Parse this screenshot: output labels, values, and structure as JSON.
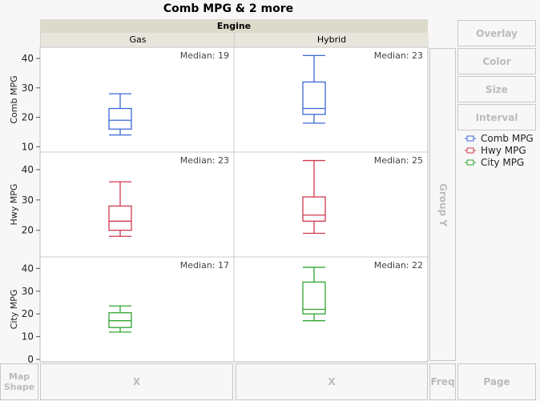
{
  "title": "Comb MPG & 2 more",
  "group_x_header": "Engine",
  "columns": [
    "Gas",
    "Hybrid"
  ],
  "buttons": {
    "overlay": "Overlay",
    "color": "Color",
    "size": "Size",
    "interval": "Interval",
    "group_y": "Group Y",
    "map_shape": "Map Shape",
    "x1": "X",
    "x2": "X",
    "freq": "Freq",
    "page": "Page"
  },
  "legend": [
    {
      "label": "Comb MPG",
      "color": "#3b66d4"
    },
    {
      "label": "Hwy MPG",
      "color": "#cf3a4e"
    },
    {
      "label": "City MPG",
      "color": "#2fa52f"
    }
  ],
  "chart_data": {
    "type": "box",
    "rows": [
      {
        "ylabel": "Comb MPG",
        "color": "#3b66d4",
        "ylim": [
          9,
          43
        ],
        "ticks": [
          10,
          20,
          30,
          40
        ],
        "boxes": [
          {
            "group": "Gas",
            "min": 14,
            "q1": 16,
            "median": 19,
            "q3": 23,
            "max": 28,
            "label": "Median: 19"
          },
          {
            "group": "Hybrid",
            "min": 18,
            "q1": 21,
            "median": 23,
            "q3": 32,
            "max": 41,
            "label": "Median: 23"
          }
        ]
      },
      {
        "ylabel": "Hwy MPG",
        "color": "#cf3a4e",
        "ylim": [
          12,
          45
        ],
        "ticks": [
          20,
          30,
          40
        ],
        "boxes": [
          {
            "group": "Gas",
            "min": 18,
            "q1": 20,
            "median": 23,
            "q3": 28,
            "max": 36,
            "label": "Median: 23"
          },
          {
            "group": "Hybrid",
            "min": 19,
            "q1": 23,
            "median": 25,
            "q3": 31,
            "max": 43,
            "label": "Median: 25"
          }
        ]
      },
      {
        "ylabel": "City MPG",
        "color": "#2fa52f",
        "ylim": [
          0,
          44
        ],
        "ticks": [
          0,
          10,
          20,
          30,
          40
        ],
        "boxes": [
          {
            "group": "Gas",
            "min": 12,
            "q1": 14,
            "median": 17,
            "q3": 20.5,
            "max": 23.5,
            "label": "Median: 17"
          },
          {
            "group": "Hybrid",
            "min": 17,
            "q1": 20,
            "median": 22,
            "q3": 34,
            "max": 40.5,
            "label": "Median: 22"
          }
        ]
      }
    ]
  }
}
